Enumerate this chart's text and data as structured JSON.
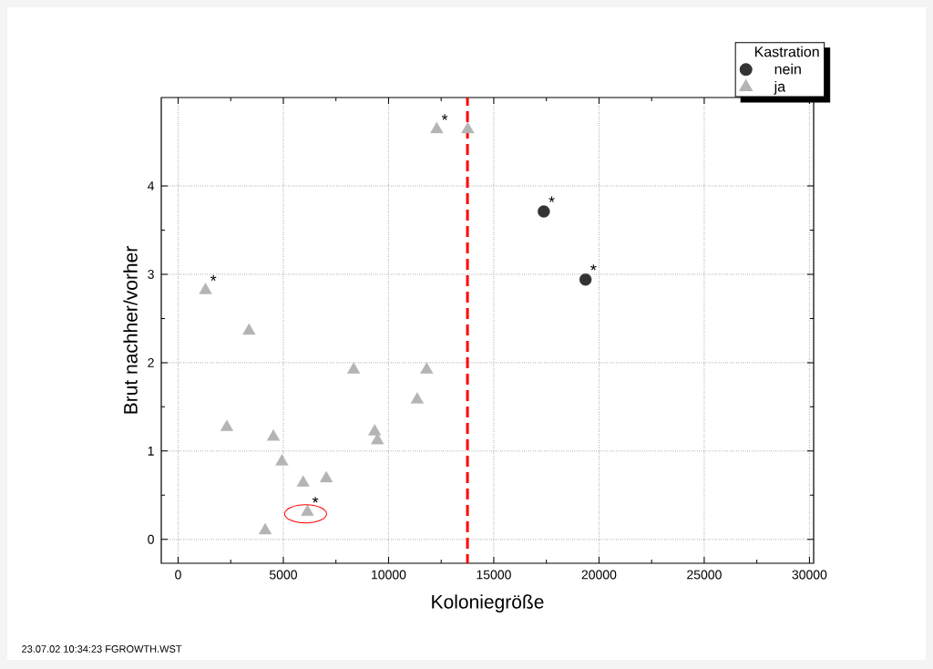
{
  "chart_data": {
    "type": "scatter",
    "xlabel": "Koloniegröße",
    "ylabel": "Brut nachher/vorher",
    "legend_title": "Kastration",
    "series": [
      {
        "name": "nein",
        "color": "#333333",
        "marker": "circle",
        "x": [
          17376,
          19359
        ],
        "values": [
          3.71,
          2.94
        ]
      },
      {
        "name": "ja",
        "color": "#b4b4b4",
        "marker": "triangle",
        "x": [
          1300,
          3370,
          2315,
          4527,
          4931,
          5942,
          7042,
          6145,
          4137,
          8342,
          11812,
          11362,
          9341,
          9471,
          12290,
          13764
        ],
        "values": [
          2.82,
          2.36,
          1.27,
          1.16,
          0.88,
          0.64,
          0.69,
          0.31,
          0.1,
          1.92,
          1.92,
          1.58,
          1.22,
          1.12,
          4.64,
          4.64
        ]
      }
    ],
    "xlim": [
      -800,
      30200
    ],
    "ylim": [
      -0.27,
      5.0
    ],
    "xticks": [
      0,
      5000,
      10000,
      15000,
      20000,
      25000,
      30000
    ],
    "yticks": [
      0,
      1,
      2,
      3,
      4
    ],
    "ref_lines": [
      {
        "axis": "x",
        "value": 13750,
        "color": "#ff0000",
        "line_style": "dashed"
      }
    ],
    "annotations": [
      {
        "text": "*",
        "x": 1300,
        "y": 2.82
      },
      {
        "text": "*",
        "x": 6145,
        "y": 0.31
      },
      {
        "text": "*",
        "x": 12290,
        "y": 4.64
      },
      {
        "text": "*",
        "x": 17376,
        "y": 3.71
      },
      {
        "text": "*",
        "x": 19359,
        "y": 2.94
      },
      "23.07.02 10:34:23 FGROWTH.WST"
    ],
    "grid": true,
    "legend": "top right"
  }
}
